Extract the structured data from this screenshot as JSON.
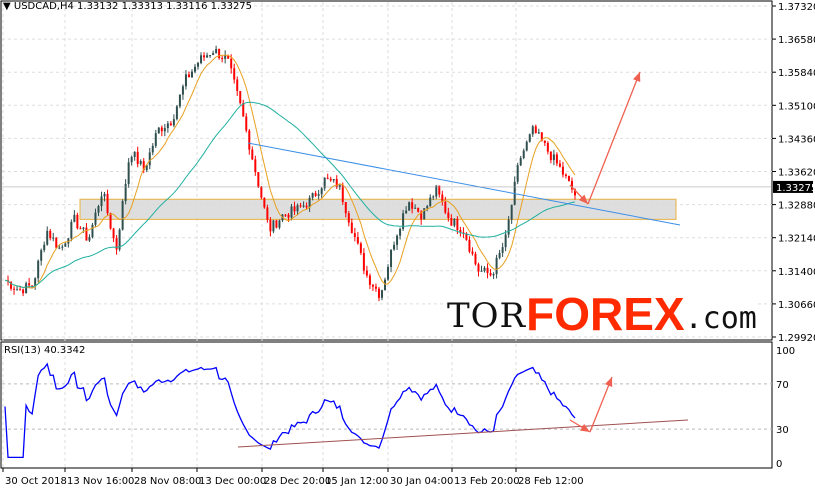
{
  "header": {
    "symbol": "USDCAD,H4",
    "open": "1.33132",
    "high": "1.33313",
    "low": "1.33116",
    "close": "1.33275"
  },
  "rsi_label": "RSI(13) 40.3342",
  "logo": {
    "part1": "TOR",
    "part2": "FOREX",
    "part3": ".com"
  },
  "colors": {
    "bull": "#2f4f4f",
    "bear": "#ff0000",
    "ma_fast": "#e8a020",
    "ma_slow": "#20b0a0",
    "trend": "#3a8fe8",
    "rsi": "#0000ff",
    "zone": "#d8d8d8",
    "arrow": "#f06050",
    "rsi_trend": "#a05050"
  },
  "chart_data": [
    {
      "type": "candlestick",
      "title": "USDCAD,H4",
      "ylim": [
        1.2992,
        1.3732
      ],
      "yticks": [
        "1.37320",
        "1.36580",
        "1.35840",
        "1.35100",
        "1.34360",
        "1.33620",
        "1.32880",
        "1.32140",
        "1.31400",
        "1.30660",
        "1.29920"
      ],
      "current_price": "1.33275",
      "xticks": [
        "30 Oct 2018",
        "13 Nov 16:00",
        "28 Nov 08:00",
        "13 Dec 00:00",
        "28 Dec 20:00",
        "15 Jan 12:00",
        "30 Jan 04:00",
        "13 Feb 20:00",
        "28 Feb 12:00"
      ],
      "close_path": [
        1.3119,
        1.3097,
        1.3108,
        1.3231,
        1.3186,
        1.3254,
        1.3209,
        1.3321,
        1.3186,
        1.341,
        1.3365,
        1.3455,
        1.3477,
        1.3567,
        1.3611,
        1.3634,
        1.3611,
        1.35,
        1.3365,
        1.3231,
        1.3265,
        1.3276,
        1.3298,
        1.3343,
        1.3332,
        1.3231,
        1.3131,
        1.3086,
        1.3209,
        1.3298,
        1.3265,
        1.3321,
        1.3254,
        1.3231,
        1.3142,
        1.3131,
        1.3209,
        1.3388,
        1.3455,
        1.341,
        1.3365,
        1.331
      ],
      "support_zone": [
        1.3255,
        1.33
      ],
      "indicators": [
        "moving average fast",
        "moving average slow",
        "descending trendline",
        "forecast arrow up"
      ]
    },
    {
      "type": "line",
      "title": "RSI(13)",
      "ylim": [
        0,
        100
      ],
      "yticks": [
        "100",
        "70",
        "30",
        "0"
      ],
      "last_value": 40.3342
    }
  ]
}
